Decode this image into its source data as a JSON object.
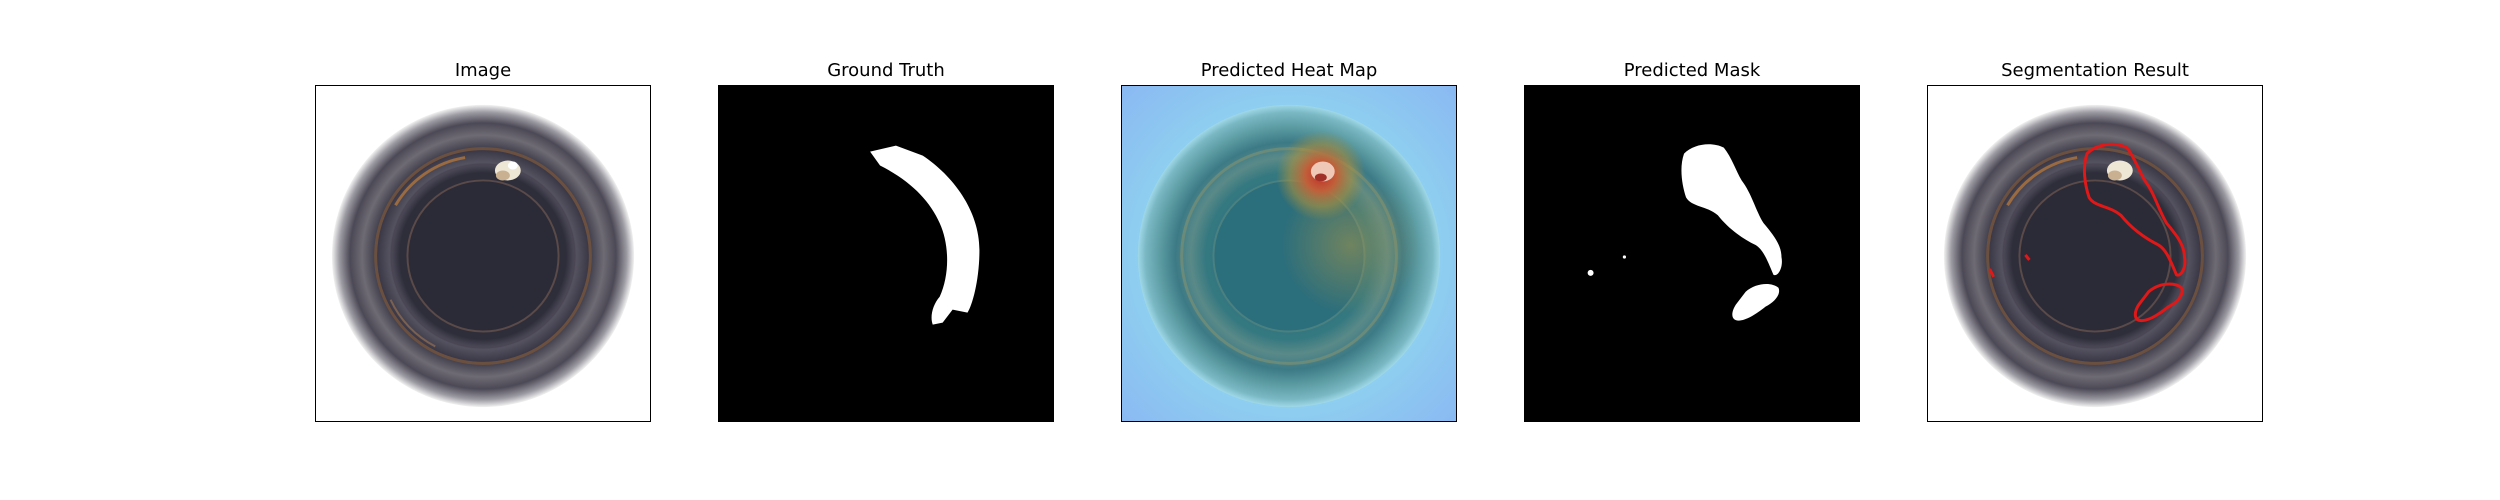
{
  "panels": [
    {
      "title": "Image"
    },
    {
      "title": "Ground Truth"
    },
    {
      "title": "Predicted Heat Map"
    },
    {
      "title": "Predicted Mask"
    },
    {
      "title": "Segmentation Result"
    }
  ]
}
